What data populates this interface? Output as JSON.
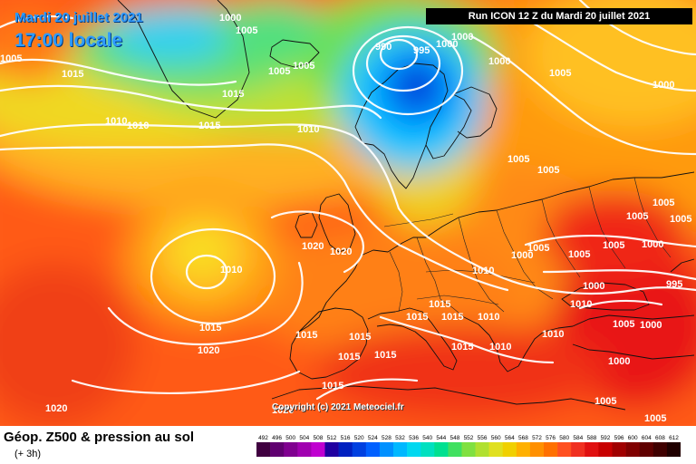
{
  "header": {
    "date": "Mardi 20 juillet 2021",
    "local_time": "17:00 locale",
    "run_info": "Run ICON 12 Z du Mardi 20 juillet 2021"
  },
  "copyright": "Copyright (c) 2021 Meteociel.fr",
  "footer": {
    "title": "Géop. Z500 & pression au sol",
    "subtitle": "(+ 3h)"
  },
  "legend": {
    "values": [
      "492",
      "496",
      "500",
      "504",
      "508",
      "512",
      "516",
      "520",
      "524",
      "528",
      "532",
      "536",
      "540",
      "544",
      "548",
      "552",
      "556",
      "560",
      "564",
      "568",
      "572",
      "576",
      "580",
      "584",
      "588",
      "592",
      "596",
      "600",
      "604",
      "608",
      "612"
    ],
    "colors": [
      "#400040",
      "#600070",
      "#800090",
      "#a000b0",
      "#c000d0",
      "#2000a0",
      "#0020c0",
      "#0040e0",
      "#0060ff",
      "#0090ff",
      "#00b8ff",
      "#00d8f0",
      "#00e0c0",
      "#00e090",
      "#40e060",
      "#80e040",
      "#b0e030",
      "#e0e020",
      "#f0d000",
      "#ffb000",
      "#ff9000",
      "#ff7000",
      "#ff5020",
      "#f03020",
      "#e01010",
      "#c80000",
      "#a00000",
      "#800000",
      "#600000",
      "#400000",
      "#200000"
    ]
  },
  "pressure_labels": [
    "1000",
    "1005",
    "990",
    "995",
    "1000",
    "1000",
    "1005",
    "1000",
    "1015",
    "1005",
    "1005",
    "1015",
    "1010",
    "1010",
    "1015",
    "1010",
    "1005",
    "1005",
    "1005",
    "1000",
    "1005",
    "1005",
    "1020",
    "1020",
    "1010",
    "1010",
    "1000",
    "1005",
    "1005",
    "1015",
    "1015",
    "1015",
    "1010",
    "1000",
    "1000",
    "1010",
    "1000",
    "1015",
    "1020",
    "1015",
    "1015",
    "1015",
    "1015",
    "1015",
    "1010",
    "1005",
    "995",
    "1000",
    "1015",
    "1020",
    "1005",
    "1005",
    "1010",
    "1005",
    "1020",
    "1005"
  ],
  "colors": {
    "title_blue": "#2e9bff"
  }
}
